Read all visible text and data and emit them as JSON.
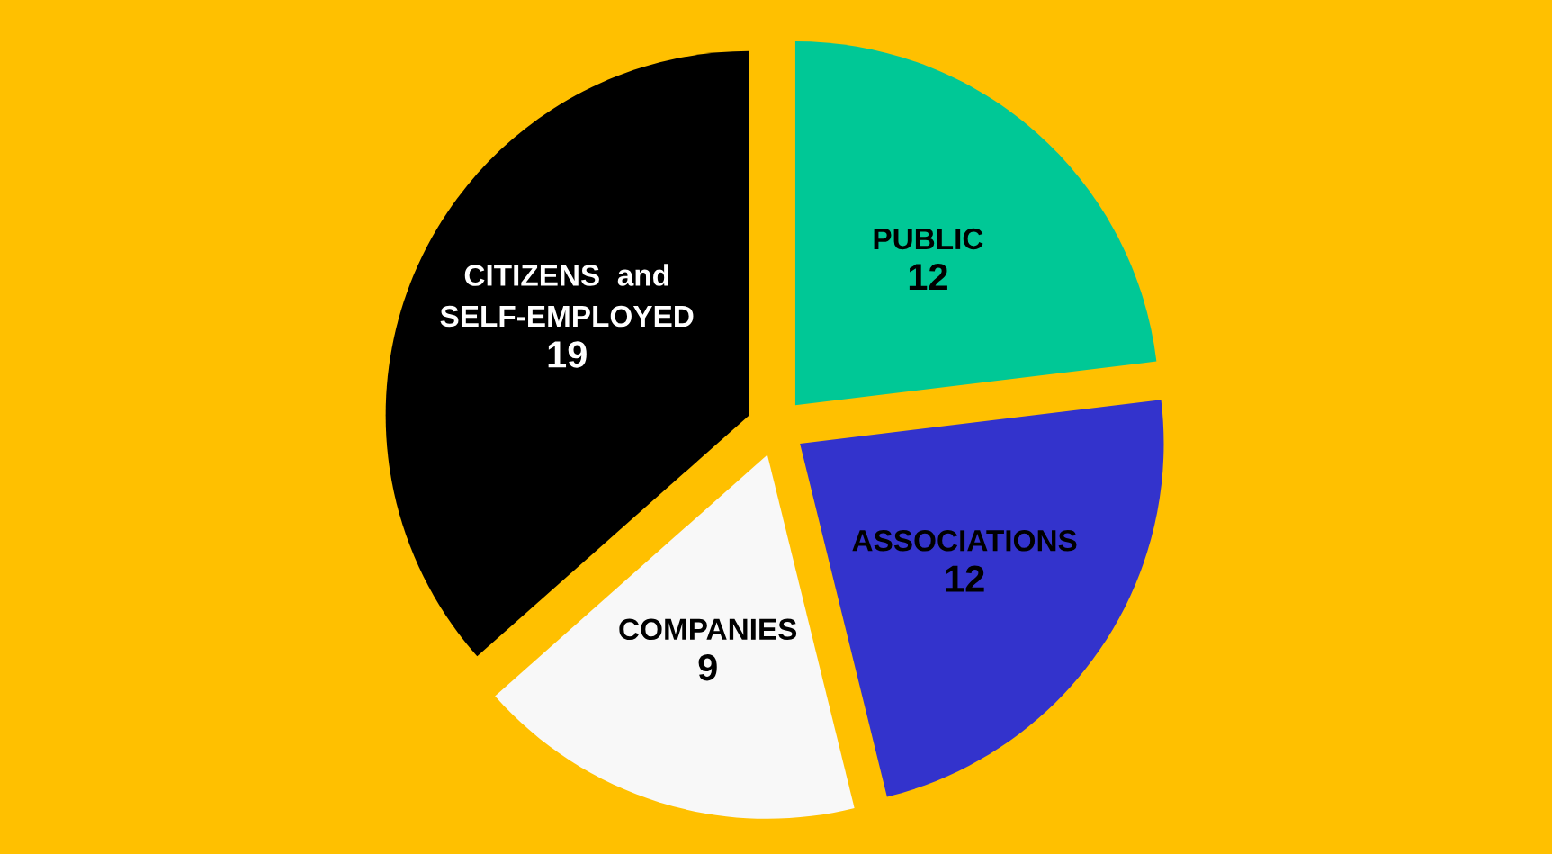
{
  "chart_data": {
    "type": "pie",
    "categories": [
      "PUBLIC",
      "ASSOCIATIONS",
      "COMPANIES",
      "CITIZENS  and\nSELF-EMPLOYED"
    ],
    "values": [
      12,
      12,
      9,
      19
    ],
    "colors": [
      "#00c896",
      "#3333cc",
      "#f8f8f8",
      "#000000"
    ],
    "data_labels": true
  }
}
